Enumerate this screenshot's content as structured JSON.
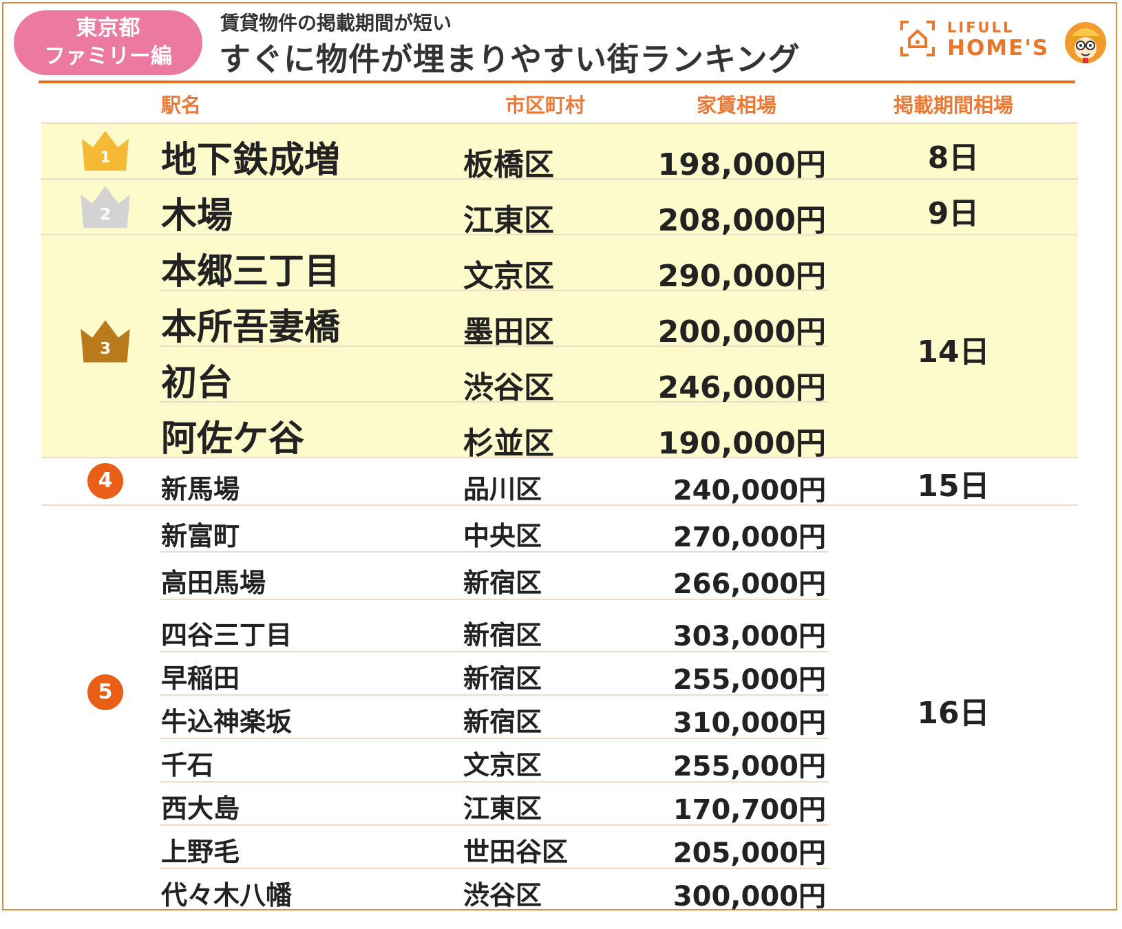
{
  "header": {
    "tag_line1": "東京都",
    "tag_line2": "ファミリー編",
    "subtitle": "賃貸物件の掲載期間が短い",
    "title": "すぐに物件が埋まりやすい街ランキング",
    "logo_small": "LIFULL",
    "logo_big": "HOME'S"
  },
  "columns": {
    "station": "駅名",
    "ward": "市区町村",
    "rent": "家賃相場",
    "period": "掲載期間相場"
  },
  "ranks": [
    {
      "rank": "1",
      "days": "8日",
      "rows": [
        {
          "station": "地下鉄成増",
          "ward": "板橋区",
          "rent": "198,000円"
        }
      ]
    },
    {
      "rank": "2",
      "days": "9日",
      "rows": [
        {
          "station": "木場",
          "ward": "江東区",
          "rent": "208,000円"
        }
      ]
    },
    {
      "rank": "3",
      "days": "14日",
      "rows": [
        {
          "station": "本郷三丁目",
          "ward": "文京区",
          "rent": "290,000円"
        },
        {
          "station": "本所吾妻橋",
          "ward": "墨田区",
          "rent": "200,000円"
        },
        {
          "station": "初台",
          "ward": "渋谷区",
          "rent": "246,000円"
        },
        {
          "station": "阿佐ケ谷",
          "ward": "杉並区",
          "rent": "190,000円"
        }
      ]
    },
    {
      "rank": "4",
      "days": "15日",
      "rows": [
        {
          "station": "新馬場",
          "ward": "品川区",
          "rent": "240,000円"
        }
      ]
    },
    {
      "rank": "5",
      "days": "16日",
      "rows": [
        {
          "station": "新富町",
          "ward": "中央区",
          "rent": "270,000円"
        },
        {
          "station": "高田馬場",
          "ward": "新宿区",
          "rent": "266,000円"
        },
        {
          "station": "四谷三丁目",
          "ward": "新宿区",
          "rent": "303,000円"
        },
        {
          "station": "早稲田",
          "ward": "新宿区",
          "rent": "255,000円"
        },
        {
          "station": "牛込神楽坂",
          "ward": "新宿区",
          "rent": "310,000円"
        },
        {
          "station": "千石",
          "ward": "文京区",
          "rent": "255,000円"
        },
        {
          "station": "西大島",
          "ward": "江東区",
          "rent": "170,700円"
        },
        {
          "station": "上野毛",
          "ward": "世田谷区",
          "rent": "205,000円"
        },
        {
          "station": "代々木八幡",
          "ward": "渋谷区",
          "rent": "300,000円"
        }
      ]
    }
  ],
  "colors": {
    "accent_orange": "#ea6a1f",
    "pill_pink": "#ec7aa0",
    "highlight_band": "#fdfbcc",
    "gold": "#f5b935",
    "silver": "#d3d3d3",
    "bronze": "#b87a1a"
  }
}
